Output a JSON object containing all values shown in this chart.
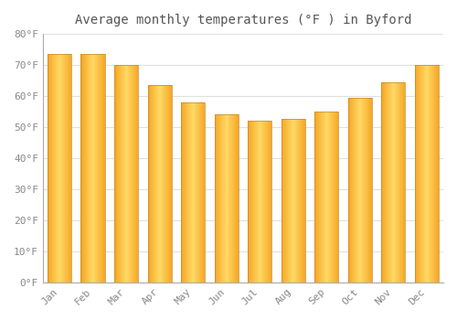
{
  "title": "Average monthly temperatures (°F ) in Byford",
  "months": [
    "Jan",
    "Feb",
    "Mar",
    "Apr",
    "May",
    "Jun",
    "Jul",
    "Aug",
    "Sep",
    "Oct",
    "Nov",
    "Dec"
  ],
  "values": [
    73.5,
    73.5,
    70.0,
    63.5,
    58.0,
    54.0,
    52.0,
    52.5,
    55.0,
    59.5,
    64.5,
    70.0
  ],
  "bar_color_outer": "#F5A623",
  "bar_color_inner": "#FFD966",
  "bar_edge_color": "#C8882A",
  "background_color": "#FFFFFF",
  "grid_color": "#E0E0E0",
  "text_color": "#888888",
  "ylim": [
    0,
    80
  ],
  "yticks": [
    0,
    10,
    20,
    30,
    40,
    50,
    60,
    70,
    80
  ],
  "title_fontsize": 10,
  "tick_fontsize": 8
}
